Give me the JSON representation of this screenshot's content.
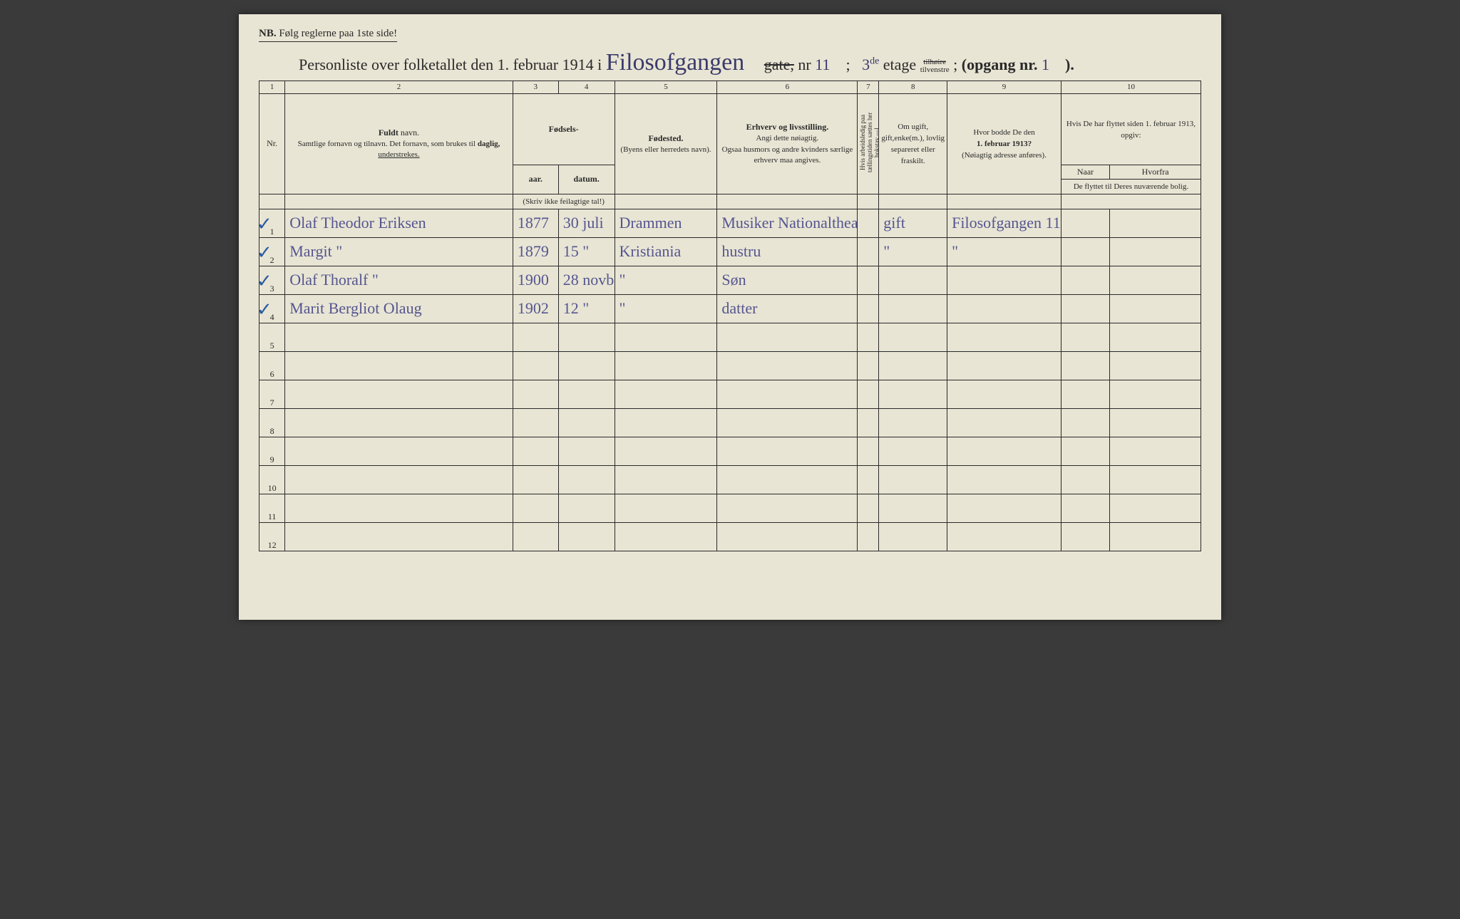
{
  "nb_prefix": "NB.",
  "nb_text": "Følg reglerne paa 1ste side!",
  "title_pre": "Personliste over folketallet den 1. februar 1914 i",
  "street_hw": "Filosofgangen",
  "gate_label": "gate,",
  "nr_label": "nr",
  "nr_hw": "11",
  "semicolon1": ";",
  "etage_hw": "3",
  "etage_sup": "de",
  "etage_label": "etage",
  "tilhoire_top": "tilhøire",
  "tilvenstre": "tilvenstre",
  "opgang_label": "(opgang nr.",
  "opgang_hw": "1",
  "close_paren": ").",
  "colnums": [
    "1",
    "2",
    "3",
    "4",
    "5",
    "6",
    "7",
    "8",
    "9",
    "10"
  ],
  "hdr": {
    "nr": "Nr.",
    "fuldt": "Fuldt",
    "navn": "navn.",
    "name_sub": "Samtlige fornavn og tilnavn. Det fornavn, som brukes til",
    "daglig": "daglig,",
    "understrekes": "understrekes.",
    "fodsels": "Fødsels-",
    "aar": "aar.",
    "datum": "datum.",
    "skriv": "(Skriv ikke feilagtige tal!)",
    "fodested": "Fødested.",
    "fodested_sub": "(Byens eller herredets navn).",
    "erhverv": "Erhverv og livsstilling.",
    "erhverv_sub1": "Angi dette nøiagtig.",
    "erhverv_sub2": "Ogsaa husmors og andre kvinders særlige erhverv maa angives.",
    "col7": "Hvis arbeidsledig paa tællingstiden sættes her bokstav —l",
    "col8a": "Om ugift, gift,enke(m.), lovlig separeret eller fraskilt.",
    "col9a": "Hvor bodde De den",
    "col9b": "1. februar 1913?",
    "col9c": "(Nøiagtig adresse anføres).",
    "col10a": "Hvis De har flyttet siden 1. februar 1913, opgiv:",
    "col10_naar": "Naar",
    "col10_hvorfra": "Hvorfra",
    "col10_sub": "De flyttet til Deres nuværende bolig."
  },
  "rows": [
    {
      "n": "1",
      "tick": "✓",
      "name": "Olaf Theodor Eriksen",
      "yr": "1877",
      "date": "30 juli",
      "place": "Drammen",
      "occ": "Musiker Nationaltheatret",
      "f": "",
      "stat": "gift",
      "addr": "Filosofgangen 11",
      "naar": "",
      "hvor": ""
    },
    {
      "n": "2",
      "tick": "✓",
      "name": "Margit  \"",
      "yr": "1879",
      "date": "15  \"",
      "place": "Kristiania",
      "occ": "hustru",
      "f": "",
      "stat": "\"",
      "addr": "\"",
      "naar": "",
      "hvor": ""
    },
    {
      "n": "3",
      "tick": "✓",
      "name": "Olaf Thoralf  \"",
      "yr": "1900",
      "date": "28 novb.",
      "place": "\"",
      "occ": "Søn",
      "f": "",
      "stat": "",
      "addr": "",
      "naar": "",
      "hvor": ""
    },
    {
      "n": "4",
      "tick": "✓",
      "name": "Marit Bergliot Olaug",
      "yr": "1902",
      "date": "12  \"",
      "place": "\"",
      "occ": "datter",
      "f": "",
      "stat": "",
      "addr": "",
      "naar": "",
      "hvor": ""
    },
    {
      "n": "5",
      "tick": "",
      "name": "",
      "yr": "",
      "date": "",
      "place": "",
      "occ": "",
      "f": "",
      "stat": "",
      "addr": "",
      "naar": "",
      "hvor": ""
    },
    {
      "n": "6",
      "tick": "",
      "name": "",
      "yr": "",
      "date": "",
      "place": "",
      "occ": "",
      "f": "",
      "stat": "",
      "addr": "",
      "naar": "",
      "hvor": ""
    },
    {
      "n": "7",
      "tick": "",
      "name": "",
      "yr": "",
      "date": "",
      "place": "",
      "occ": "",
      "f": "",
      "stat": "",
      "addr": "",
      "naar": "",
      "hvor": ""
    },
    {
      "n": "8",
      "tick": "",
      "name": "",
      "yr": "",
      "date": "",
      "place": "",
      "occ": "",
      "f": "",
      "stat": "",
      "addr": "",
      "naar": "",
      "hvor": ""
    },
    {
      "n": "9",
      "tick": "",
      "name": "",
      "yr": "",
      "date": "",
      "place": "",
      "occ": "",
      "f": "",
      "stat": "",
      "addr": "",
      "naar": "",
      "hvor": ""
    },
    {
      "n": "10",
      "tick": "",
      "name": "",
      "yr": "",
      "date": "",
      "place": "",
      "occ": "",
      "f": "",
      "stat": "",
      "addr": "",
      "naar": "",
      "hvor": ""
    },
    {
      "n": "11",
      "tick": "",
      "name": "",
      "yr": "",
      "date": "",
      "place": "",
      "occ": "",
      "f": "",
      "stat": "",
      "addr": "",
      "naar": "",
      "hvor": ""
    },
    {
      "n": "12",
      "tick": "",
      "name": "",
      "yr": "",
      "date": "",
      "place": "",
      "occ": "",
      "f": "",
      "stat": "",
      "addr": "",
      "naar": "",
      "hvor": ""
    }
  ]
}
